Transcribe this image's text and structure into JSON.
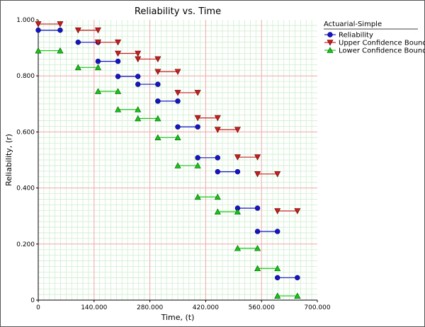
{
  "chart_data": {
    "type": "scatter",
    "title": "Reliability vs. Time",
    "xlabel": "Time, (t)",
    "ylabel": "Reliability, (r)",
    "xlim": [
      0,
      700000
    ],
    "ylim": [
      0,
      1
    ],
    "x_ticks": [
      "0",
      "140.000",
      "280.000",
      "420.000",
      "560.000",
      "700.000"
    ],
    "y_ticks": [
      "0",
      "0.200",
      "0.400",
      "0.600",
      "0.800",
      "1.000"
    ],
    "grid": true,
    "legend_position": "top-right",
    "legend_title": "Actuarial-Simple",
    "series": [
      {
        "name": "Reliability",
        "marker": "circle",
        "color": "#1515c8",
        "segments": [
          [
            0,
            55000,
            0.963
          ],
          [
            100000,
            150000,
            0.92
          ],
          [
            150000,
            200000,
            0.852
          ],
          [
            200000,
            250000,
            0.798
          ],
          [
            250000,
            300000,
            0.77
          ],
          [
            300000,
            350000,
            0.71
          ],
          [
            350000,
            400000,
            0.618
          ],
          [
            400000,
            450000,
            0.508
          ],
          [
            450000,
            500000,
            0.458
          ],
          [
            500000,
            550000,
            0.328
          ],
          [
            550000,
            600000,
            0.245
          ],
          [
            600000,
            650000,
            0.08
          ]
        ]
      },
      {
        "name": "Upper Confidence Bounds",
        "marker": "triangle-down",
        "color": "#c81e1e",
        "segments": [
          [
            0,
            55000,
            0.985
          ],
          [
            100000,
            150000,
            0.963
          ],
          [
            150000,
            200000,
            0.92
          ],
          [
            200000,
            250000,
            0.88
          ],
          [
            250000,
            300000,
            0.86
          ],
          [
            300000,
            350000,
            0.815
          ],
          [
            350000,
            400000,
            0.74
          ],
          [
            400000,
            450000,
            0.65
          ],
          [
            450000,
            500000,
            0.608
          ],
          [
            500000,
            550000,
            0.51
          ],
          [
            550000,
            600000,
            0.45
          ],
          [
            600000,
            650000,
            0.318
          ]
        ]
      },
      {
        "name": "Lower Confidence Bounds",
        "marker": "triangle-up",
        "color": "#15c815",
        "segments": [
          [
            0,
            55000,
            0.89
          ],
          [
            100000,
            150000,
            0.83
          ],
          [
            150000,
            200000,
            0.745
          ],
          [
            200000,
            250000,
            0.68
          ],
          [
            250000,
            300000,
            0.648
          ],
          [
            300000,
            350000,
            0.58
          ],
          [
            350000,
            400000,
            0.48
          ],
          [
            400000,
            450000,
            0.368
          ],
          [
            450000,
            500000,
            0.315
          ],
          [
            500000,
            550000,
            0.185
          ],
          [
            550000,
            600000,
            0.113
          ],
          [
            600000,
            650000,
            0.015
          ]
        ]
      }
    ]
  }
}
